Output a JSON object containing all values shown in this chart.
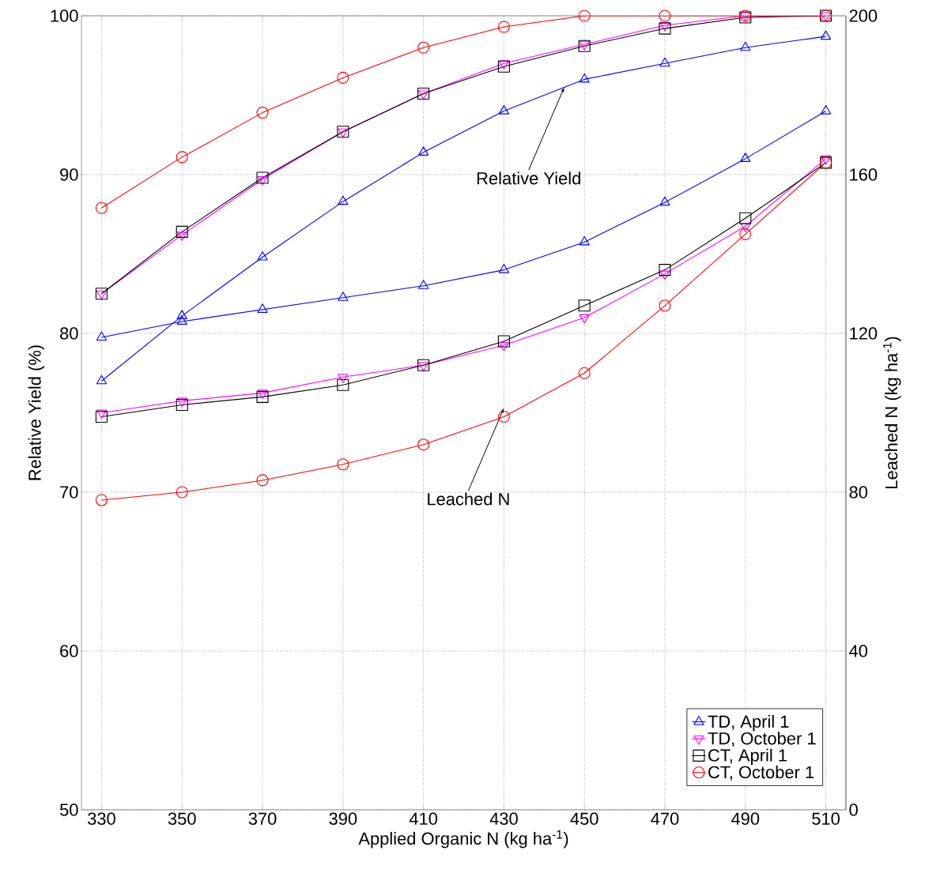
{
  "chart_data": {
    "type": "line",
    "xlabel": "Applied Organic N (kg ha$^{-1}$)",
    "ylabel": "Relative Yield (%)",
    "y2label": "Leached N (kg ha$^{-1}$)",
    "x": [
      330,
      350,
      370,
      390,
      410,
      430,
      450,
      470,
      490,
      510
    ],
    "xlim": [
      325,
      515
    ],
    "xticks": [
      330,
      350,
      370,
      390,
      410,
      430,
      450,
      470,
      490,
      510
    ],
    "ylim": [
      50,
      100
    ],
    "yticks": [
      50,
      60,
      70,
      80,
      90,
      100
    ],
    "y2lim": [
      0,
      200
    ],
    "y2ticks": [
      0,
      40,
      80,
      120,
      160,
      200
    ],
    "grid": true,
    "legend": "bottom right",
    "series": [
      {
        "name": "TD, April 1",
        "color": "#0000ff",
        "marker": "triangle",
        "values": [
          77.0,
          81.1,
          84.8,
          88.3,
          91.4,
          94.0,
          96.0,
          97.0,
          98.0,
          98.7
        ]
      },
      {
        "name": "TD, October 1",
        "color": "#ff00ff",
        "marker": "triangle-down",
        "values": [
          82.5,
          86.2,
          89.7,
          92.7,
          95.1,
          97.0,
          98.2,
          99.4,
          100,
          100
        ]
      },
      {
        "name": "CT, April 1",
        "color": "#000000",
        "marker": "square",
        "values": [
          82.5,
          86.4,
          89.8,
          92.7,
          95.1,
          96.8,
          98.1,
          99.2,
          99.9,
          100
        ]
      },
      {
        "name": "CT, October 1",
        "color": "#ff0000",
        "marker": "circle",
        "values": [
          87.9,
          91.1,
          93.9,
          96.1,
          98.0,
          99.3,
          100,
          100,
          100,
          100
        ]
      },
      {
        "color": "#0000ff",
        "marker": "triangle",
        "axis": "y2",
        "values": [
          119,
          123,
          126,
          129,
          132,
          136,
          143,
          153,
          164,
          176
        ]
      },
      {
        "color": "#ff00ff",
        "marker": "triangle-down",
        "axis": "y2",
        "values": [
          100,
          103,
          105,
          109,
          112,
          117,
          124,
          135,
          147,
          164
        ]
      },
      {
        "color": "#000000",
        "marker": "square",
        "axis": "y2",
        "values": [
          99,
          102,
          104,
          107,
          112,
          118,
          127,
          136,
          149,
          163
        ]
      },
      {
        "color": "#ff0000",
        "marker": "circle",
        "axis": "y2",
        "values": [
          78,
          80,
          83,
          87,
          92,
          99,
          110,
          127,
          145,
          163
        ]
      }
    ],
    "annotations": [
      {
        "text": "Relative Yield",
        "x": 445,
        "y": 95.5
      },
      {
        "text": "Leached N",
        "x": 430,
        "y": 75.3
      }
    ]
  }
}
